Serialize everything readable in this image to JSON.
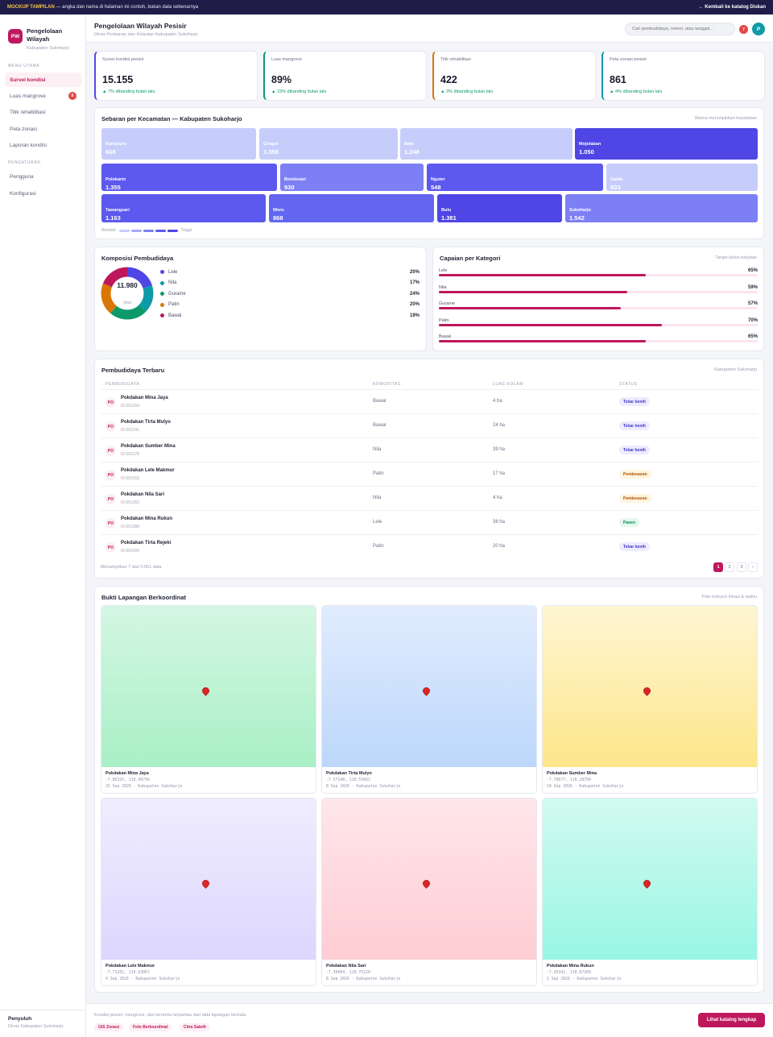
{
  "banner": {
    "tag": "MOCKUP TAMPILAN",
    "text": " — angka dan nama di halaman ini contoh, bukan data sebenarnya",
    "back": "← Kembali ke katalog Diskan"
  },
  "brand": {
    "initials": "PW",
    "title": "Pengelolaan Wilayah",
    "subtitle": "Kabupaten Sukoharjo"
  },
  "nav": {
    "section1": "MENU UTAMA",
    "items": [
      {
        "label": "Survei kondisi"
      },
      {
        "label": "Luas mangrove",
        "badge": "6"
      },
      {
        "label": "Titik rehabilitasi"
      },
      {
        "label": "Peta zonasi"
      },
      {
        "label": "Laporan kondisi"
      }
    ],
    "section2": "PENGATURAN",
    "settings": [
      {
        "label": "Pengguna"
      },
      {
        "label": "Konfigurasi"
      }
    ]
  },
  "user": {
    "role": "Penyuluh",
    "org": "Dinas Kabupaten Sukoharjo"
  },
  "header": {
    "title": "Pengelolaan Wilayah Pesisir",
    "subtitle": "Dinas Perikanan dan Kelautan Kabupaten Sukoharjo",
    "search_placeholder": "Cari pembudidaya, nomor, atau tanggal...",
    "notif_count": "7",
    "avatar": "P"
  },
  "kpis": [
    {
      "label": "Survei kondisi pesisir",
      "value": "15.155",
      "delta": "▲ 7% dibanding bulan lalu",
      "accent": "#4f46e5"
    },
    {
      "label": "Luas mangrove",
      "value": "89%",
      "delta": "▲ 15% dibanding bulan lalu",
      "accent": "#0c9a6b"
    },
    {
      "label": "Titik rehabilitasi",
      "value": "422",
      "delta": "▲ 3% dibanding bulan lalu",
      "accent": "#d97706"
    },
    {
      "label": "Peta zonasi pesisir",
      "value": "861",
      "delta": "▲ 4% dibanding bulan lalu",
      "accent": "#0e9aa7"
    }
  ],
  "treemap": {
    "title": "Sebaran per Kecamatan — Kabupaten Sukoharjo",
    "hint": "Warna menunjukkan kepadatan",
    "cells": [
      {
        "name": "Kartasura",
        "value": "668",
        "color": "#c7cdfb"
      },
      {
        "name": "Grogol",
        "value": "1.358",
        "color": "#c7cdfb"
      },
      {
        "name": "Baki",
        "value": "1.248",
        "color": "#c7cdfb"
      },
      {
        "name": "Mojolaban",
        "value": "1.050",
        "color": "#4f46e5"
      },
      {
        "name": "Polokarto",
        "value": "1.355",
        "color": "#5d58ee"
      },
      {
        "name": "Bendosari",
        "value": "930",
        "color": "#7d7ff5"
      },
      {
        "name": "Nguter",
        "value": "548",
        "color": "#5d58ee"
      },
      {
        "name": "Gatak",
        "value": "833",
        "color": "#c7cdfb"
      },
      {
        "name": "Tawangsari",
        "value": "1.163",
        "color": "#5d58ee"
      },
      {
        "name": "Weru",
        "value": "868",
        "color": "#6366f1"
      },
      {
        "name": "Bulu",
        "value": "1.381",
        "color": "#4f46e5"
      },
      {
        "name": "Sukoharjo",
        "value": "1.542",
        "color": "#7d7ff5"
      }
    ],
    "legend_low": "Rendah",
    "legend_high": "Tinggi",
    "scale": [
      "#c7cdfb",
      "#a5abf8",
      "#7d7ff5",
      "#5d58ee",
      "#4f46e5"
    ]
  },
  "composition": {
    "title": "Komposisi Pembudidaya",
    "total": "11.980",
    "total_label": "total",
    "items": [
      {
        "label": "Lele",
        "pct": "20%",
        "value": 20,
        "color": "#4f46e5"
      },
      {
        "label": "Nila",
        "pct": "17%",
        "value": 17,
        "color": "#0e9aa7"
      },
      {
        "label": "Gurame",
        "pct": "24%",
        "value": 24,
        "color": "#0c9a6b"
      },
      {
        "label": "Patin",
        "pct": "20%",
        "value": 20,
        "color": "#d97706"
      },
      {
        "label": "Bawal",
        "pct": "19%",
        "value": 19,
        "color": "#be185d"
      }
    ]
  },
  "achievement": {
    "title": "Capaian per Kategori",
    "hint": "Target tahun berjalan",
    "items": [
      {
        "label": "Lele",
        "pct": "65%",
        "value": 0.65
      },
      {
        "label": "Nila",
        "pct": "59%",
        "value": 0.59
      },
      {
        "label": "Gurame",
        "pct": "57%",
        "value": 0.57
      },
      {
        "label": "Patin",
        "pct": "70%",
        "value": 0.7
      },
      {
        "label": "Bawal",
        "pct": "65%",
        "value": 0.65
      }
    ]
  },
  "table": {
    "title": "Pembudidaya Terbaru",
    "hint": "Kabupaten Sukoharjo",
    "headers": [
      "PEMBUDIDAYA",
      "KOMODITAS",
      "LUAS KOLAM",
      "STATUS"
    ],
    "rows": [
      {
        "ini": "PO",
        "name": "Pokdakan Mina Jaya",
        "id": "ID.001204",
        "kom": "Bawal",
        "luas": "4 ha",
        "status": "Tebar benih",
        "st": "tebar"
      },
      {
        "ini": "PO",
        "name": "Pokdakan Tirta Mulyo",
        "id": "ID.001241",
        "kom": "Bawal",
        "luas": "24 ha",
        "status": "Tebar benih",
        "st": "tebar"
      },
      {
        "ini": "PO",
        "name": "Pokdakan Sumber Mina",
        "id": "ID.001278",
        "kom": "Nila",
        "luas": "39 ha",
        "status": "Tebar benih",
        "st": "tebar"
      },
      {
        "ini": "PO",
        "name": "Pokdakan Lele Makmur",
        "id": "ID.001315",
        "kom": "Patin",
        "luas": "17 ha",
        "status": "Pembesaran",
        "st": "pemb"
      },
      {
        "ini": "PO",
        "name": "Pokdakan Nila Sari",
        "id": "ID.001352",
        "kom": "Nila",
        "luas": "4 ha",
        "status": "Pembesaran",
        "st": "pemb"
      },
      {
        "ini": "PO",
        "name": "Pokdakan Mina Rukun",
        "id": "ID.001389",
        "kom": "Lele",
        "luas": "38 ha",
        "status": "Panen",
        "st": "panen"
      },
      {
        "ini": "PO",
        "name": "Pokdakan Tirta Rejeki",
        "id": "ID.001426",
        "kom": "Patin",
        "luas": "20 ha",
        "status": "Tebar benih",
        "st": "tebar"
      }
    ],
    "info": "Menampilkan 7 dari 3.051 data",
    "pages": [
      "1",
      "2",
      "3",
      "›"
    ]
  },
  "photos": {
    "title": "Bukti Lapangan Berkoordinat",
    "hint": "Foto terkunci lokasi & waktu",
    "items": [
      {
        "name": "Pokdakan Mina Jaya",
        "coord": "-7.86325, 110.90756",
        "meta": "25 Sep 2026 · Kabupaten Sukoharjo",
        "c1": "#d4f7e3",
        "c2": "#a9efc6"
      },
      {
        "name": "Pokdakan Tirta Mulyo",
        "coord": "-7.57148, 110.55662",
        "meta": "8 Sep 2026 · Kabupaten Sukoharjo",
        "c1": "#e1ecfe",
        "c2": "#bcd7fb"
      },
      {
        "name": "Pokdakan Sumber Mina",
        "coord": "-7.78677, 110.28784",
        "meta": "18 Sep 2026 · Kabupaten Sukoharjo",
        "c1": "#fef6d3",
        "c2": "#fde68a"
      },
      {
        "name": "Pokdakan Lele Makmur",
        "coord": "-7.71201, 110.63067",
        "meta": "4 Sep 2026 · Kabupaten Sukoharjo",
        "c1": "#efedfe",
        "c2": "#ddd6fe"
      },
      {
        "name": "Pokdakan Nila Sari",
        "coord": "-7.30004, 110.75220",
        "meta": "8 Sep 2026 · Kabupaten Sukoharjo",
        "c1": "#ffe6ea",
        "c2": "#fecdd3"
      },
      {
        "name": "Pokdakan Mina Rukun",
        "coord": "-7.36341, 110.87260",
        "meta": "2 Sep 2026 · Kabupaten Sukoharjo",
        "c1": "#d2faf0",
        "c2": "#99f6e4"
      }
    ]
  },
  "footer": {
    "text": "Kondisi pesisir, mangrove, dan terumbu terpantau dari data lapangan berkala.",
    "tags": [
      "GIS Zonasi",
      "Foto Berkoordinat",
      "Citra Satelit"
    ],
    "cta": "Lihat katalog lengkap"
  }
}
